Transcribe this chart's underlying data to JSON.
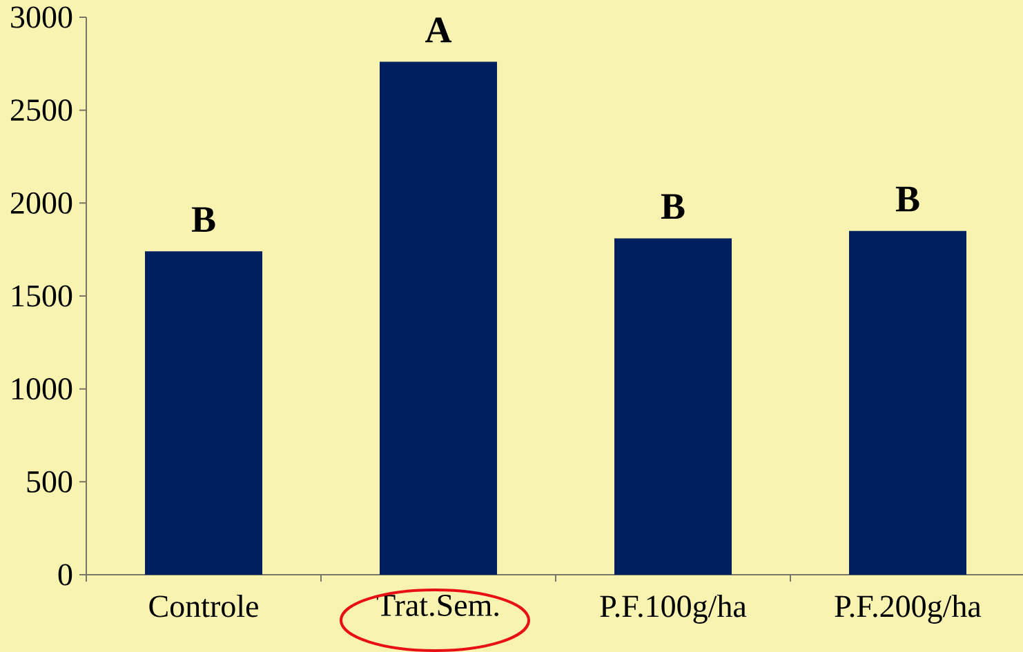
{
  "chart_data": {
    "type": "bar",
    "categories": [
      "Controle",
      "Trat.Sem.",
      "P.F.100g/ha",
      "P.F.200g/ha"
    ],
    "values": [
      1740,
      2760,
      1810,
      1850
    ],
    "color": "#001F5F",
    "ylim": [
      0,
      3000
    ],
    "yticks": [
      0,
      500,
      1000,
      1500,
      2000,
      2500,
      3000
    ],
    "annotations": [
      {
        "text": "B",
        "x": "Controle",
        "y": 1740
      },
      {
        "text": "A",
        "x": "Trat.Sem.",
        "y": 2760
      },
      {
        "text": "B",
        "x": "P.F.100g/ha",
        "y": 1810
      },
      {
        "text": "B",
        "x": "P.F.200g/ha",
        "y": 1850
      }
    ]
  }
}
